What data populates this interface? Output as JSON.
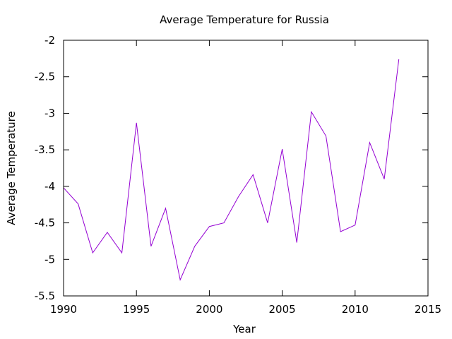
{
  "chart_data": {
    "type": "line",
    "title": "Average Temperature for Russia",
    "xlabel": "Year",
    "ylabel": "Average Temperature",
    "xlim": [
      1990,
      2015
    ],
    "ylim": [
      -5.5,
      -2
    ],
    "xticks": [
      1990,
      1995,
      2000,
      2005,
      2010,
      2015
    ],
    "yticks": [
      -5.5,
      -5,
      -4.5,
      -4,
      -3.5,
      -3,
      -2.5,
      -2
    ],
    "grid": false,
    "series": [
      {
        "color": "#9400d3",
        "x": [
          1990,
          1991,
          1992,
          1993,
          1994,
          1995,
          1996,
          1997,
          1998,
          1999,
          2000,
          2001,
          2002,
          2003,
          2004,
          2005,
          2006,
          2007,
          2008,
          2009,
          2010,
          2011,
          2012,
          2013
        ],
        "y": [
          -4.02,
          -4.24,
          -4.91,
          -4.63,
          -4.91,
          -3.13,
          -4.82,
          -4.3,
          -5.28,
          -4.82,
          -4.55,
          -4.5,
          -4.14,
          -3.84,
          -4.5,
          -3.49,
          -4.77,
          -2.98,
          -3.31,
          -4.62,
          -4.53,
          -3.4,
          -3.9,
          -2.26
        ]
      }
    ]
  }
}
